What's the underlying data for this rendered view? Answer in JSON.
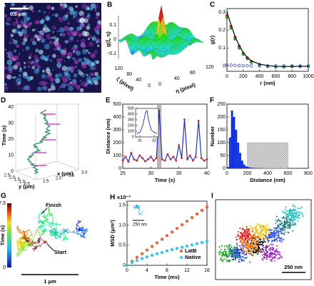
{
  "figure": {
    "A": {
      "label": "A",
      "scale_bar": "0.5 μm"
    },
    "B": {
      "label": "B",
      "z_label": "g(ξ, η)",
      "z_ticks": [
        "0.1",
        "0",
        "-0.1"
      ],
      "xi_label": "ξ (pixel)",
      "xi_ticks": [
        "120",
        "80",
        "40",
        "0"
      ],
      "eta_label": "η (pixel)",
      "eta_ticks": [
        "0",
        "40",
        "80",
        "120"
      ]
    },
    "D": {
      "label": "D",
      "t_label": "Time (s)",
      "t_ticks": [
        "0",
        "10",
        "20",
        "30",
        "40"
      ],
      "y_label": "y (μm)",
      "y_ticks": [
        "2.5",
        "2.0",
        "1.5",
        "1.0",
        "0.5"
      ],
      "x_label": "x (μm)",
      "x_ticks": [
        "1.5",
        "2.0",
        "2.5",
        "3.0"
      ]
    },
    "G": {
      "label": "G",
      "colorbar_label": "Time (s)",
      "colorbar_max": "7.5",
      "colorbar_min": "0",
      "finish": "Finish",
      "start": "Start",
      "scale_bar": "1 μm"
    },
    "I": {
      "label": "I",
      "scale_bar": "250 nm"
    }
  },
  "chart_data": [
    {
      "type": "line",
      "panel_label": "C",
      "xlabel": "r (nm)",
      "ylabel": "g(r)",
      "x": [
        0,
        50,
        100,
        150,
        200,
        250,
        300,
        400,
        500,
        600,
        700,
        800,
        900,
        1000
      ],
      "series": [
        {
          "color": "#e02020",
          "style": "markers",
          "values": [
            0.28,
            0.22,
            0.16,
            0.11,
            0.07,
            0.045,
            0.025,
            0.008,
            0,
            -0.005,
            -0.005,
            -0.003,
            -0.002,
            -0.002
          ]
        },
        {
          "color": "#20a040",
          "style": "markers",
          "values": [
            0.27,
            0.21,
            0.15,
            0.1,
            0.065,
            0.04,
            0.02,
            0.005,
            -0.003,
            -0.006,
            -0.005,
            -0.004,
            -0.003,
            -0.002
          ]
        },
        {
          "color": "#000000",
          "style": "line",
          "values": [
            0.3,
            0.23,
            0.165,
            0.115,
            0.075,
            0.047,
            0.028,
            0.01,
            0.002,
            -0.002,
            -0.003,
            -0.003,
            -0.002,
            -0.002
          ]
        },
        {
          "color": "#2030c0",
          "style": "open",
          "values": [
            0.005,
            0.004,
            0.003,
            0.002,
            0.001,
            0.001,
            0,
            0,
            0,
            0,
            0,
            0,
            0,
            0
          ]
        }
      ],
      "xlim": [
        0,
        1000
      ],
      "xticks": [
        0,
        200,
        400,
        600,
        800,
        1000
      ],
      "ylim": [
        -0.03,
        0.32
      ],
      "yticks": [
        0,
        0.1,
        0.2,
        0.3
      ]
    },
    {
      "type": "line",
      "panel_label": "E",
      "xlabel": "Time (s)",
      "ylabel": "Distance (nm)",
      "x": [
        25,
        25.5,
        26,
        26.5,
        27,
        27.5,
        28,
        28.5,
        29,
        29.5,
        30,
        30.5,
        31,
        31.5,
        32,
        32.5,
        33,
        33.5,
        34,
        34.5,
        35,
        35.5,
        36,
        36.5,
        37,
        37.5,
        38,
        38.5,
        39,
        39.5,
        40
      ],
      "series": [
        {
          "color": "#2030d0",
          "marker_color": "#e02020",
          "style": "line",
          "values": [
            60,
            90,
            50,
            120,
            70,
            60,
            100,
            80,
            55,
            70,
            90,
            60,
            80,
            450,
            70,
            60,
            110,
            70,
            90,
            60,
            180,
            80,
            380,
            70,
            100,
            60,
            90,
            370,
            80,
            60,
            70
          ]
        }
      ],
      "highlight": [
        31.1,
        31.9
      ],
      "xlim": [
        25,
        40
      ],
      "xticks": [
        25,
        30,
        35,
        40
      ],
      "ylim": [
        0,
        500
      ],
      "yticks": [
        0,
        100,
        200,
        300,
        400,
        500
      ],
      "inset": {
        "x": [
          30.8,
          31,
          31.2,
          31.4,
          31.5,
          31.6,
          31.8,
          32,
          32.2
        ],
        "values": [
          60,
          80,
          200,
          430,
          460,
          300,
          120,
          80,
          60
        ],
        "xlim": [
          30.7,
          32.3
        ],
        "xticks": [
          31,
          32
        ],
        "ylim": [
          0,
          500
        ],
        "yticks": [
          0,
          100,
          200,
          300,
          400,
          500
        ]
      }
    },
    {
      "type": "histogram",
      "panel_label": "F",
      "xlabel": "Distance (nm)",
      "ylabel": "Number",
      "color": "#1030e0",
      "bins": [
        0,
        20,
        40,
        60,
        80,
        100,
        120,
        140,
        160,
        180,
        200,
        220,
        240,
        260,
        280,
        300,
        320,
        340,
        360,
        380,
        400,
        420,
        440,
        460,
        480,
        500,
        520,
        540,
        560,
        580,
        600
      ],
      "counts": [
        5,
        120,
        225,
        200,
        150,
        100,
        60,
        30,
        15,
        8,
        5,
        3,
        2,
        2,
        1,
        1,
        1,
        1,
        0,
        1,
        0,
        0,
        1,
        0,
        0,
        0,
        1,
        0,
        0,
        0
      ],
      "shaded": [
        200,
        600
      ],
      "shaded_height": 100,
      "xlim": [
        0,
        800
      ],
      "xticks": [
        0,
        200,
        400,
        600,
        800
      ],
      "ylim": [
        0,
        250
      ],
      "yticks": [
        0,
        50,
        100,
        150,
        200,
        250
      ]
    },
    {
      "type": "line",
      "panel_label": "H",
      "xlabel": "Time (ms)",
      "ylabel": "MSD (μm²)",
      "multiplier": "x10⁻³",
      "inset_scale": "250 nm",
      "legend": "lower right",
      "x": [
        0,
        1,
        2,
        3,
        4,
        5,
        6,
        7,
        8,
        9,
        10,
        11,
        12,
        13,
        14,
        15,
        16
      ],
      "series": [
        {
          "name": "LatB",
          "color": "#f06030",
          "style": "markers",
          "values": [
            0,
            0.1,
            0.2,
            0.29,
            0.38,
            0.47,
            0.56,
            0.65,
            0.74,
            0.83,
            0.92,
            1.01,
            1.1,
            1.19,
            1.28,
            1.37,
            1.45
          ]
        },
        {
          "name": "Native",
          "color": "#30c8e8",
          "style": "markers",
          "values": [
            0,
            0.07,
            0.12,
            0.17,
            0.21,
            0.25,
            0.29,
            0.32,
            0.36,
            0.39,
            0.42,
            0.45,
            0.48,
            0.51,
            0.54,
            0.57,
            0.6
          ]
        }
      ],
      "xlim": [
        0,
        16
      ],
      "xticks": [
        0,
        4,
        8,
        12,
        16
      ],
      "ylim": [
        0,
        1.6
      ],
      "yticks": [
        0,
        0.5,
        {
          "value": 1,
          "label": "1.0"
        },
        1.5
      ]
    }
  ]
}
